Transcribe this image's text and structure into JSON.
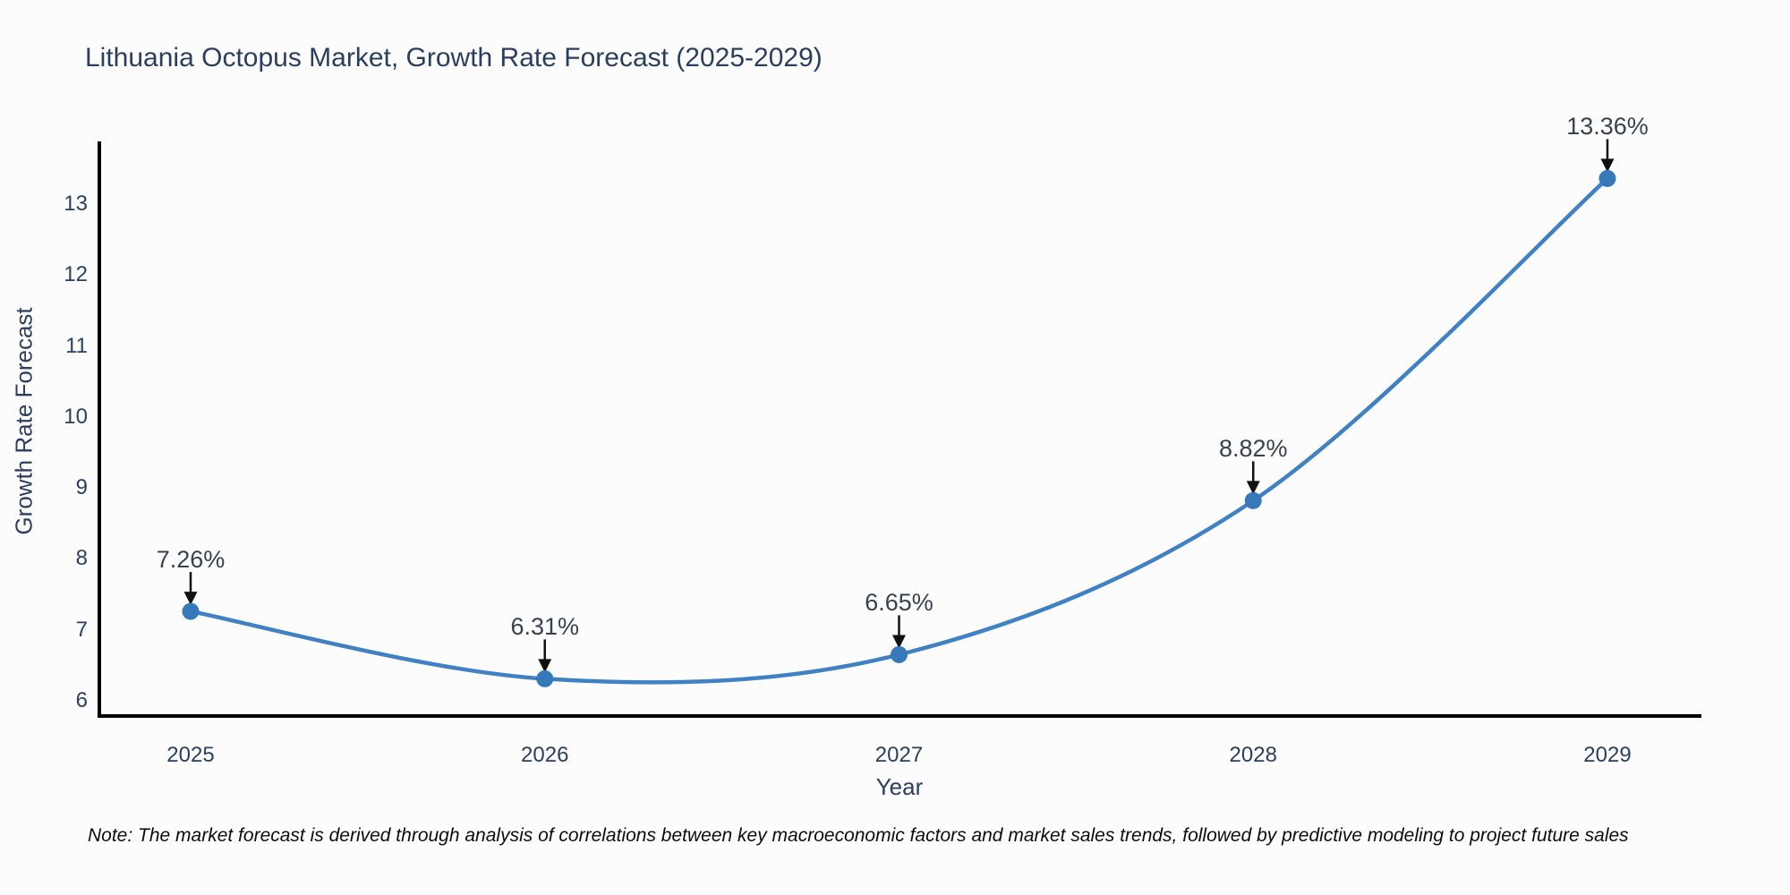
{
  "title": "Lithuania Octopus Market, Growth Rate Forecast (2025-2029)",
  "note": "Note: The market forecast is derived through analysis of correlations between key macroeconomic factors and market sales trends, followed by predictive modeling to project future sales",
  "chart_data": {
    "type": "line",
    "title": "Lithuania Octopus Market, Growth Rate Forecast (2025-2029)",
    "x": [
      2025,
      2026,
      2027,
      2028,
      2029
    ],
    "values": [
      7.26,
      6.31,
      6.65,
      8.82,
      13.36
    ],
    "point_labels": [
      "7.26%",
      "6.31%",
      "6.65%",
      "8.82%",
      "13.36%"
    ],
    "xlabel": "Year",
    "ylabel": "Growth Rate Forecast",
    "yticks": [
      6,
      7,
      8,
      9,
      10,
      11,
      12,
      13
    ],
    "ylim": [
      5.75,
      13.95
    ],
    "line_shape": "spline",
    "grid": false,
    "legend": "none",
    "colors": {
      "line": "#3f81c2",
      "marker": "#3579b8",
      "arrow": "#111111",
      "axis": "#000000",
      "label_text": "#2a3f5f",
      "annotation_text": "#38424e",
      "background": "#fcfcfc"
    }
  }
}
